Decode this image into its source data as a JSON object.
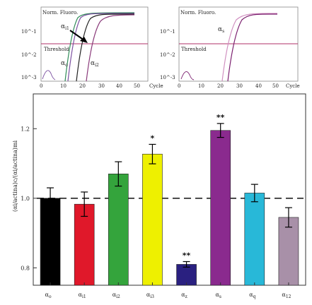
{
  "chart_data": [
    {
      "type": "line",
      "panel": "amplification-left",
      "ylabel": "Norm. Fluoro.",
      "xlabel": "Cycle",
      "x_ticks": [
        "0",
        "10",
        "20",
        "30",
        "40",
        "50"
      ],
      "y_ticks": [
        "10^-1",
        "10^-2",
        "10^-3"
      ],
      "xlim": [
        0,
        50
      ],
      "threshold_label": "Threshold",
      "curve_labels": [
        "αi1",
        "αo",
        "αi2"
      ],
      "series_colors": [
        "#2e8b57",
        "#7b4fa0",
        "#222222",
        "#8a3a7a"
      ]
    },
    {
      "type": "line",
      "panel": "amplification-right",
      "ylabel": "Norm. Fluoro.",
      "xlabel": "Cycle",
      "x_ticks": [
        "0",
        "10",
        "20",
        "30",
        "40",
        "50"
      ],
      "y_ticks": [
        "10^-1",
        "10^-2",
        "10^-3"
      ],
      "xlim": [
        0,
        50
      ],
      "threshold_label": "Threshold",
      "curve_labels": [
        "αs"
      ],
      "series_colors": [
        "#7a1e6e",
        "#d090c0"
      ]
    },
    {
      "type": "bar",
      "panel": "ratio-bars",
      "ylabel": "(αi/actina)c/(αi/actina)mi",
      "ylim": [
        0.75,
        1.3
      ],
      "y_ticks": [
        0.8,
        1.0,
        1.2
      ],
      "y_tick_labels": [
        "0.8",
        "1.0",
        "1.2"
      ],
      "reference_line": 1.0,
      "categories": [
        "αo",
        "αi1",
        "αi2",
        "αi3",
        "αz",
        "αs",
        "αq",
        "α12"
      ],
      "values": [
        1.0,
        0.983,
        1.07,
        1.127,
        0.81,
        1.195,
        1.015,
        0.945
      ],
      "errors": [
        0.03,
        0.035,
        0.035,
        0.028,
        0.008,
        0.02,
        0.025,
        0.028
      ],
      "significance": [
        "",
        "",
        "",
        "*",
        "**",
        "**",
        "",
        ""
      ],
      "colors": [
        "#000000",
        "#e0182a",
        "#34a43c",
        "#eef000",
        "#2a2080",
        "#8a2a8e",
        "#28b8d8",
        "#a890a8"
      ]
    }
  ]
}
